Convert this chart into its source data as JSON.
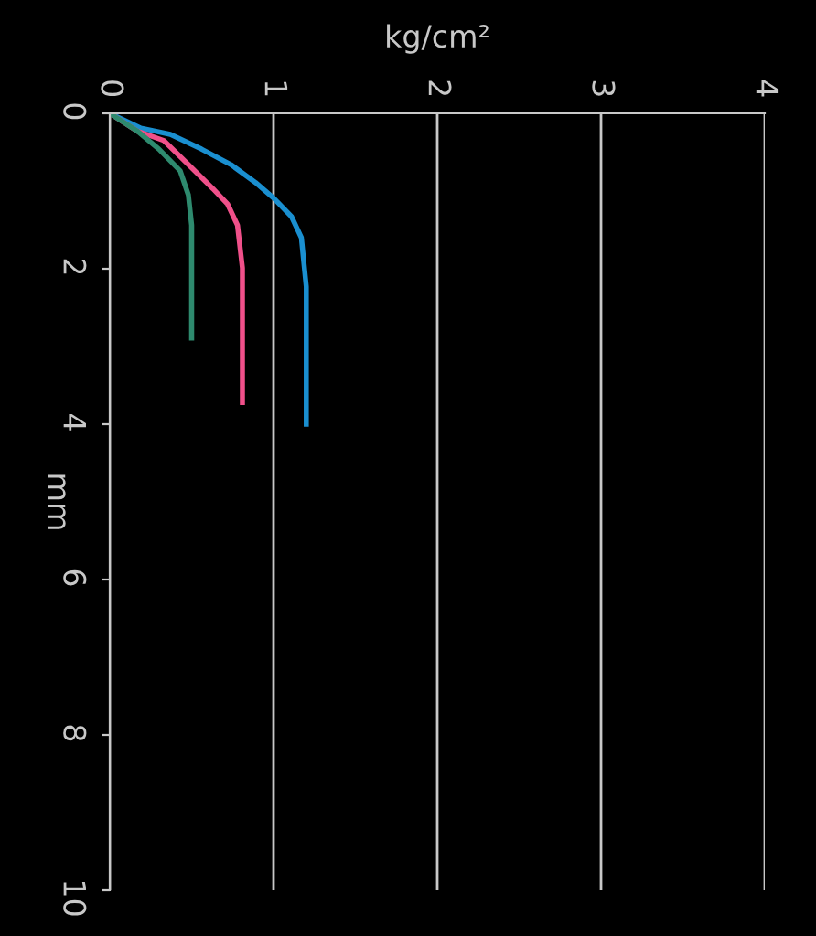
{
  "chart_data": {
    "type": "line",
    "xlabel": "kg/cm²",
    "ylabel": "mm",
    "xlim": [
      0,
      4
    ],
    "xticks": [
      0,
      1,
      2,
      3,
      4
    ],
    "ylim": [
      10,
      0
    ],
    "yticks": [
      0,
      2,
      4,
      6,
      8,
      10
    ],
    "grid": "x",
    "series": [
      {
        "color": "#1a8fd0",
        "x": [
          0,
          0.19,
          0.37,
          0.56,
          0.74,
          0.89,
          1.0,
          1.11,
          1.17,
          1.2,
          1.2,
          1.2
        ],
        "values": [
          0,
          0.19,
          0.27,
          0.46,
          0.66,
          0.89,
          1.09,
          1.33,
          1.6,
          2.23,
          3.0,
          4.0
        ]
      },
      {
        "color": "#f0508a",
        "x": [
          0,
          0.17,
          0.33,
          0.48,
          0.63,
          0.72,
          0.78,
          0.81,
          0.81
        ],
        "values": [
          0,
          0.23,
          0.35,
          0.66,
          0.97,
          1.17,
          1.44,
          1.99,
          3.72
        ]
      },
      {
        "color": "#2e8a6e",
        "x": [
          0,
          0.17,
          0.3,
          0.43,
          0.48,
          0.5,
          0.5
        ],
        "values": [
          0,
          0.23,
          0.46,
          0.74,
          1.05,
          1.44,
          2.89
        ]
      }
    ]
  }
}
